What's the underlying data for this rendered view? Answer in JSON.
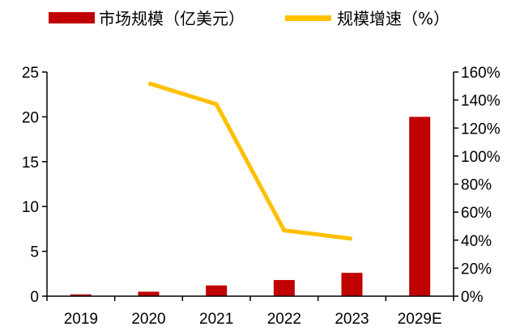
{
  "chart_data": {
    "type": "bar",
    "categories": [
      "2019",
      "2020",
      "2021",
      "2022",
      "2023",
      "2029E"
    ],
    "series": [
      {
        "name": "市场规模（亿美元）",
        "type": "bar",
        "axis": "left",
        "color": "#c00000",
        "values": [
          0.2,
          0.5,
          1.2,
          1.8,
          2.6,
          20.0
        ]
      },
      {
        "name": "规模增速（%）",
        "type": "line",
        "axis": "right",
        "color": "#ffc000",
        "values": [
          null,
          1.52,
          1.37,
          0.47,
          0.41,
          null
        ]
      }
    ],
    "y_left": {
      "ylim": [
        0,
        25
      ],
      "ticks": [
        "0",
        "5",
        "10",
        "15",
        "20",
        "25"
      ]
    },
    "y_right": {
      "ylim": [
        0,
        1.6
      ],
      "ticks": [
        "0%",
        "20%",
        "40%",
        "60%",
        "80%",
        "100%",
        "120%",
        "140%",
        "160%"
      ]
    },
    "title": "",
    "xlabel": "",
    "ylabel": "",
    "legend": {
      "placement": "top",
      "items": [
        "市场规模（亿美元）",
        "规模增速（%）"
      ]
    },
    "grid": false
  }
}
